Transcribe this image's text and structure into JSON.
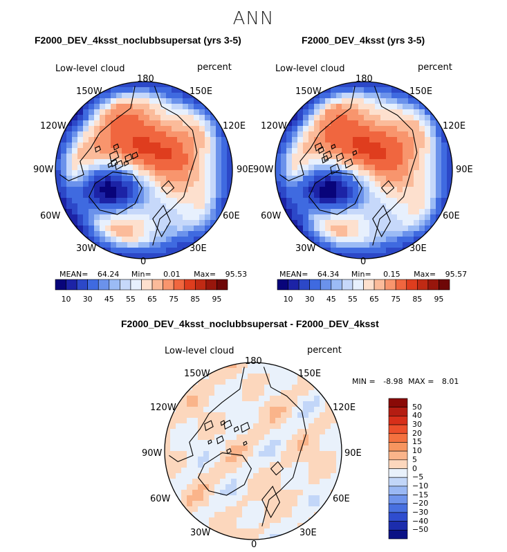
{
  "figure": {
    "title": "ANN"
  },
  "chart_data": [
    {
      "type": "heatmap",
      "projection": "north polar stereographic",
      "title": "F2000_DEV_4ksst_noclubbsupersat (yrs 3-5)",
      "left_label": "Low-level cloud",
      "right_label": "percent",
      "lon_labels": [
        "180",
        "150W",
        "150E",
        "120W",
        "120E",
        "90W",
        "90E",
        "60W",
        "60E",
        "30W",
        "30E",
        "0"
      ],
      "stats": {
        "mean_label": "MEAN=",
        "mean": "64.24",
        "min_label": "Min=",
        "min": "0.01",
        "max_label": "Max=",
        "max": "95.53"
      },
      "colorbar": {
        "levels": [
          10,
          20,
          30,
          40,
          45,
          50,
          55,
          60,
          65,
          70,
          75,
          80,
          85,
          90,
          95
        ],
        "tick_labels": [
          "10",
          "30",
          "45",
          "55",
          "65",
          "75",
          "85",
          "95"
        ],
        "colors": [
          "#08047a",
          "#1c23a6",
          "#2c48c8",
          "#3f6ae0",
          "#6b92eb",
          "#9bbbf5",
          "#c6d8fa",
          "#e7f0fd",
          "#fde0ce",
          "#fbbb9a",
          "#f8956d",
          "#f0663f",
          "#df3d1e",
          "#c02a14",
          "#98160c",
          "#6e0707"
        ]
      }
    },
    {
      "type": "heatmap",
      "projection": "north polar stereographic",
      "title": "F2000_DEV_4ksst (yrs 3-5)",
      "left_label": "Low-level cloud",
      "right_label": "percent",
      "lon_labels": [
        "180",
        "150W",
        "150E",
        "120W",
        "120E",
        "90W",
        "90E",
        "60W",
        "60E",
        "30W",
        "30E",
        "0"
      ],
      "stats": {
        "mean_label": "MEAN=",
        "mean": "64.34",
        "min_label": "Min=",
        "min": "0.15",
        "max_label": "Max=",
        "max": "95.57"
      },
      "colorbar": {
        "levels": [
          10,
          20,
          30,
          40,
          45,
          50,
          55,
          60,
          65,
          70,
          75,
          80,
          85,
          90,
          95
        ],
        "tick_labels": [
          "10",
          "30",
          "45",
          "55",
          "65",
          "75",
          "85",
          "95"
        ],
        "colors": [
          "#08047a",
          "#1c23a6",
          "#2c48c8",
          "#3f6ae0",
          "#6b92eb",
          "#9bbbf5",
          "#c6d8fa",
          "#e7f0fd",
          "#fde0ce",
          "#fbbb9a",
          "#f8956d",
          "#f0663f",
          "#df3d1e",
          "#c02a14",
          "#98160c",
          "#6e0707"
        ]
      }
    },
    {
      "type": "heatmap",
      "projection": "north polar stereographic",
      "title": "F2000_DEV_4ksst_noclubbsupersat - F2000_DEV_4ksst",
      "left_label": "Low-level cloud",
      "right_label": "percent",
      "lon_labels": [
        "180",
        "150W",
        "150E",
        "120W",
        "120E",
        "90W",
        "90E",
        "60W",
        "60E",
        "30W",
        "30E",
        "0"
      ],
      "stats": {
        "min_label": "MIN =",
        "min": "-8.98",
        "max_label": "MAX =",
        "max": "8.01"
      },
      "colorbar": {
        "levels": [
          -50,
          -40,
          -30,
          -20,
          -15,
          -10,
          -5,
          0,
          5,
          10,
          15,
          20,
          30,
          40,
          50
        ],
        "tick_labels": [
          "50",
          "40",
          "30",
          "20",
          "15",
          "10",
          "5",
          "0",
          "−5",
          "−10",
          "−15",
          "−20",
          "−30",
          "−40",
          "−50"
        ],
        "colors": [
          "#8a0a07",
          "#b41d12",
          "#d72f1a",
          "#ec4f2b",
          "#f4713f",
          "#f7955f",
          "#fab48a",
          "#fcd7bd",
          "#e9f1fb",
          "#c2d6f8",
          "#9ab8f4",
          "#6f94ec",
          "#4870e0",
          "#2f4dcf",
          "#1c2dad",
          "#0b1285"
        ]
      }
    }
  ]
}
